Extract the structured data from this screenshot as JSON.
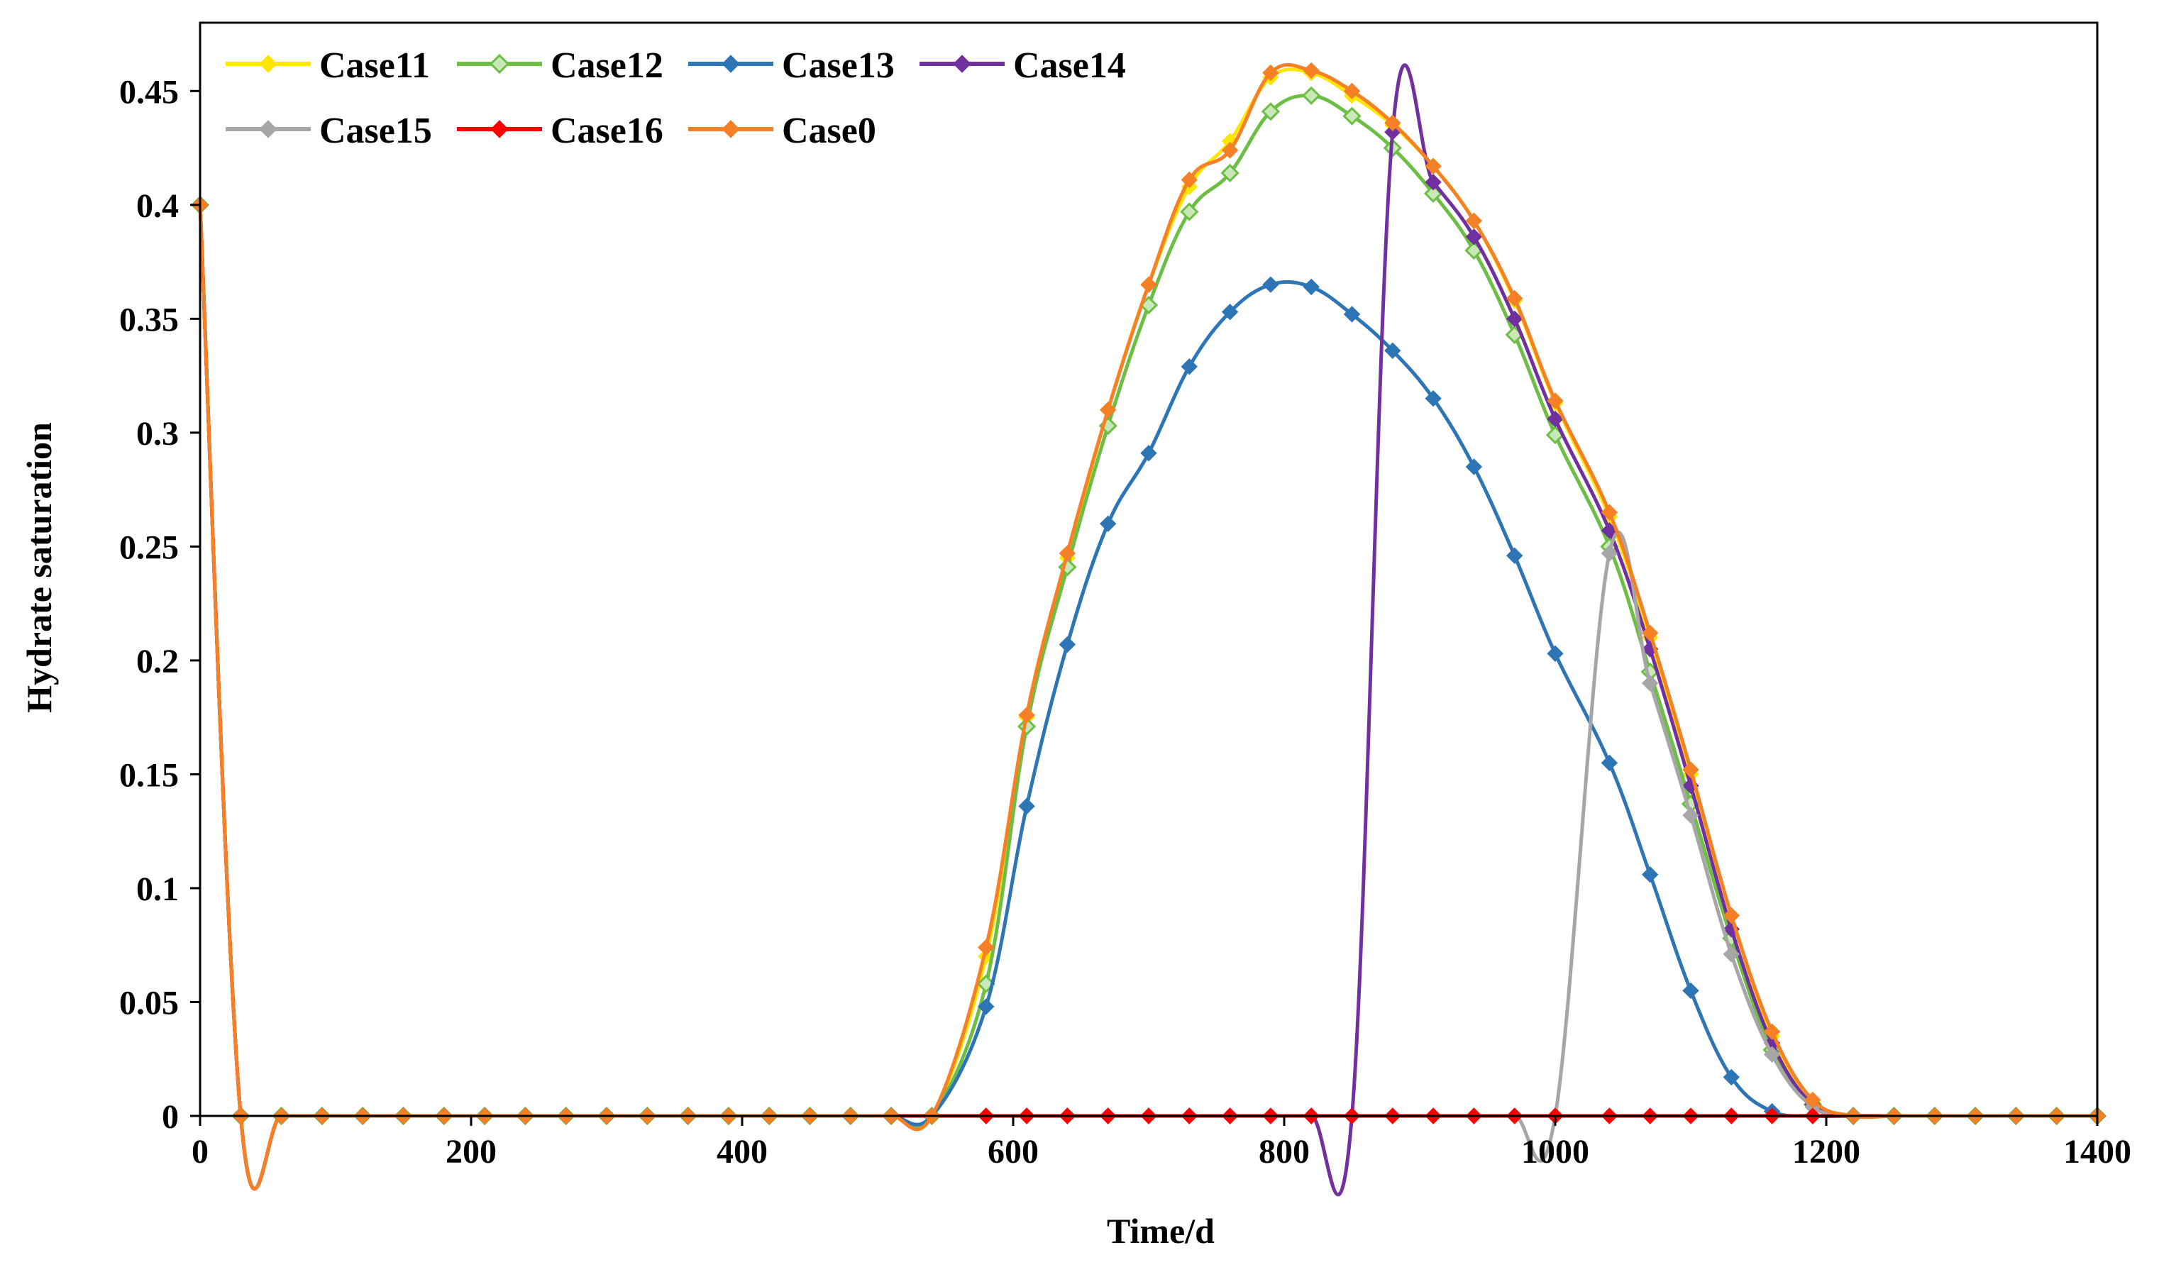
{
  "chart_data": {
    "type": "line",
    "title": "",
    "xlabel": "Time/d",
    "ylabel": "Hydrate saturation",
    "xlim": [
      0,
      1400
    ],
    "ylim": [
      0,
      0.48
    ],
    "xticks": [
      0,
      200,
      400,
      600,
      800,
      1000,
      1200,
      1400
    ],
    "xtick_labels": [
      "0",
      "200",
      "400",
      "600",
      "800",
      "1000",
      "1200",
      "1400"
    ],
    "yticks": [
      0,
      0.05,
      0.1,
      0.15,
      0.2,
      0.25,
      0.3,
      0.35,
      0.4,
      0.45
    ],
    "ytick_labels": [
      "0",
      "0.05",
      "0.1",
      "0.15",
      "0.2",
      "0.25",
      "0.3",
      "0.35",
      "0.4",
      "0.45"
    ],
    "grid": false,
    "legend_position": "top-left",
    "series": [
      {
        "name": "Case11",
        "color": "#FFE600",
        "marker": "diamond-filled",
        "x": [
          0,
          30,
          60,
          90,
          120,
          150,
          180,
          210,
          240,
          270,
          300,
          330,
          360,
          390,
          420,
          450,
          480,
          510,
          540,
          580,
          610,
          640,
          670,
          700,
          730,
          760,
          790,
          820,
          850,
          880,
          910,
          940,
          970,
          1000,
          1040,
          1070,
          1100,
          1130,
          1160,
          1190,
          1220,
          1250,
          1280,
          1310,
          1340,
          1370,
          1400
        ],
        "y": [
          0.4,
          0,
          0,
          0,
          0,
          0,
          0,
          0,
          0,
          0,
          0,
          0,
          0,
          0,
          0,
          0,
          0,
          0,
          0,
          0.07,
          0.175,
          0.245,
          0.31,
          0.365,
          0.408,
          0.428,
          0.456,
          0.458,
          0.448,
          0.435,
          0.417,
          0.393,
          0.358,
          0.313,
          0.263,
          0.21,
          0.15,
          0.088,
          0.035,
          0.006,
          0,
          0,
          0,
          0,
          0,
          0,
          0
        ]
      },
      {
        "name": "Case12",
        "color": "#6DBE45",
        "marker": "diamond-open",
        "x": [
          0,
          30,
          60,
          90,
          120,
          150,
          180,
          210,
          240,
          270,
          300,
          330,
          360,
          390,
          420,
          450,
          480,
          510,
          540,
          580,
          610,
          640,
          670,
          700,
          730,
          760,
          790,
          820,
          850,
          880,
          910,
          940,
          970,
          1000,
          1040,
          1070,
          1100,
          1130,
          1160,
          1190,
          1220,
          1250,
          1280,
          1310,
          1340,
          1370,
          1400
        ],
        "y": [
          0.4,
          0,
          0,
          0,
          0,
          0,
          0,
          0,
          0,
          0,
          0,
          0,
          0,
          0,
          0,
          0,
          0,
          0,
          0,
          0.058,
          0.171,
          0.241,
          0.303,
          0.356,
          0.397,
          0.414,
          0.441,
          0.448,
          0.439,
          0.425,
          0.405,
          0.38,
          0.343,
          0.299,
          0.25,
          0.195,
          0.137,
          0.078,
          0.029,
          0.005,
          0,
          0,
          0,
          0,
          0,
          0,
          0
        ]
      },
      {
        "name": "Case13",
        "color": "#2E75B6",
        "marker": "diamond-filled",
        "x": [
          0,
          30,
          60,
          90,
          120,
          150,
          180,
          210,
          240,
          270,
          300,
          330,
          360,
          390,
          420,
          450,
          480,
          510,
          540,
          580,
          610,
          640,
          670,
          700,
          730,
          760,
          790,
          820,
          850,
          880,
          910,
          940,
          970,
          1000,
          1040,
          1070,
          1100,
          1130,
          1160,
          1190,
          1220,
          1250,
          1280,
          1310,
          1340,
          1370,
          1400
        ],
        "y": [
          0.4,
          0,
          0,
          0,
          0,
          0,
          0,
          0,
          0,
          0,
          0,
          0,
          0,
          0,
          0,
          0,
          0,
          0,
          0,
          0.048,
          0.136,
          0.207,
          0.26,
          0.291,
          0.329,
          0.353,
          0.365,
          0.364,
          0.352,
          0.336,
          0.315,
          0.285,
          0.246,
          0.203,
          0.155,
          0.106,
          0.055,
          0.017,
          0.002,
          0,
          0,
          0,
          0,
          0,
          0,
          0,
          0
        ]
      },
      {
        "name": "Case14",
        "color": "#7030A0",
        "marker": "diamond-filled",
        "x": [
          0,
          30,
          60,
          90,
          120,
          150,
          180,
          210,
          240,
          270,
          300,
          330,
          360,
          390,
          420,
          450,
          480,
          510,
          540,
          580,
          610,
          640,
          670,
          700,
          730,
          760,
          790,
          820,
          850,
          880,
          910,
          940,
          970,
          1000,
          1040,
          1070,
          1100,
          1130,
          1160,
          1190,
          1220,
          1250,
          1280,
          1310,
          1340,
          1370,
          1400
        ],
        "y": [
          0.4,
          0,
          0,
          0,
          0,
          0,
          0,
          0,
          0,
          0,
          0,
          0,
          0,
          0,
          0,
          0,
          0,
          0,
          0,
          0,
          0,
          0,
          0,
          0,
          0,
          0,
          0,
          0,
          0,
          0.432,
          0.41,
          0.386,
          0.35,
          0.306,
          0.257,
          0.205,
          0.145,
          0.082,
          0.032,
          0.005,
          0,
          0,
          0,
          0,
          0,
          0,
          0
        ]
      },
      {
        "name": "Case15",
        "color": "#A6A6A6",
        "marker": "diamond-filled",
        "x": [
          0,
          30,
          60,
          90,
          120,
          150,
          180,
          210,
          240,
          270,
          300,
          330,
          360,
          390,
          420,
          450,
          480,
          510,
          540,
          580,
          610,
          640,
          670,
          700,
          730,
          760,
          790,
          820,
          850,
          880,
          910,
          940,
          970,
          1000,
          1040,
          1070,
          1100,
          1130,
          1160,
          1190,
          1220,
          1250,
          1280,
          1310,
          1340,
          1370,
          1400
        ],
        "y": [
          0.4,
          0,
          0,
          0,
          0,
          0,
          0,
          0,
          0,
          0,
          0,
          0,
          0,
          0,
          0,
          0,
          0,
          0,
          0,
          0,
          0,
          0,
          0,
          0,
          0,
          0,
          0,
          0,
          0,
          0,
          0,
          0,
          0,
          0,
          0.247,
          0.19,
          0.132,
          0.071,
          0.027,
          0.004,
          0,
          0,
          0,
          0,
          0,
          0,
          0
        ]
      },
      {
        "name": "Case16",
        "color": "#FF0000",
        "marker": "diamond-filled",
        "x": [
          0,
          30,
          60,
          90,
          120,
          150,
          180,
          210,
          240,
          270,
          300,
          330,
          360,
          390,
          420,
          450,
          480,
          510,
          540,
          580,
          610,
          640,
          670,
          700,
          730,
          760,
          790,
          820,
          850,
          880,
          910,
          940,
          970,
          1000,
          1040,
          1070,
          1100,
          1130,
          1160,
          1190,
          1220,
          1250,
          1280,
          1310,
          1340,
          1370,
          1400
        ],
        "y": [
          0.4,
          0,
          0,
          0,
          0,
          0,
          0,
          0,
          0,
          0,
          0,
          0,
          0,
          0,
          0,
          0,
          0,
          0,
          0,
          0,
          0,
          0,
          0,
          0,
          0,
          0,
          0,
          0,
          0,
          0,
          0,
          0,
          0,
          0,
          0,
          0,
          0,
          0,
          0,
          0,
          0,
          0,
          0,
          0,
          0,
          0,
          0
        ]
      },
      {
        "name": "Case0",
        "color": "#F58025",
        "marker": "diamond-filled",
        "x": [
          0,
          30,
          60,
          90,
          120,
          150,
          180,
          210,
          240,
          270,
          300,
          330,
          360,
          390,
          420,
          450,
          480,
          510,
          540,
          580,
          610,
          640,
          670,
          700,
          730,
          760,
          790,
          820,
          850,
          880,
          910,
          940,
          970,
          1000,
          1040,
          1070,
          1100,
          1130,
          1160,
          1190,
          1220,
          1250,
          1280,
          1310,
          1340,
          1370,
          1400
        ],
        "y": [
          0.4,
          0,
          0,
          0,
          0,
          0,
          0,
          0,
          0,
          0,
          0,
          0,
          0,
          0,
          0,
          0,
          0,
          0,
          0,
          0.074,
          0.176,
          0.247,
          0.31,
          0.365,
          0.411,
          0.424,
          0.458,
          0.459,
          0.45,
          0.436,
          0.417,
          0.393,
          0.359,
          0.314,
          0.265,
          0.212,
          0.152,
          0.088,
          0.037,
          0.007,
          0,
          0,
          0,
          0,
          0,
          0,
          0
        ]
      }
    ]
  }
}
